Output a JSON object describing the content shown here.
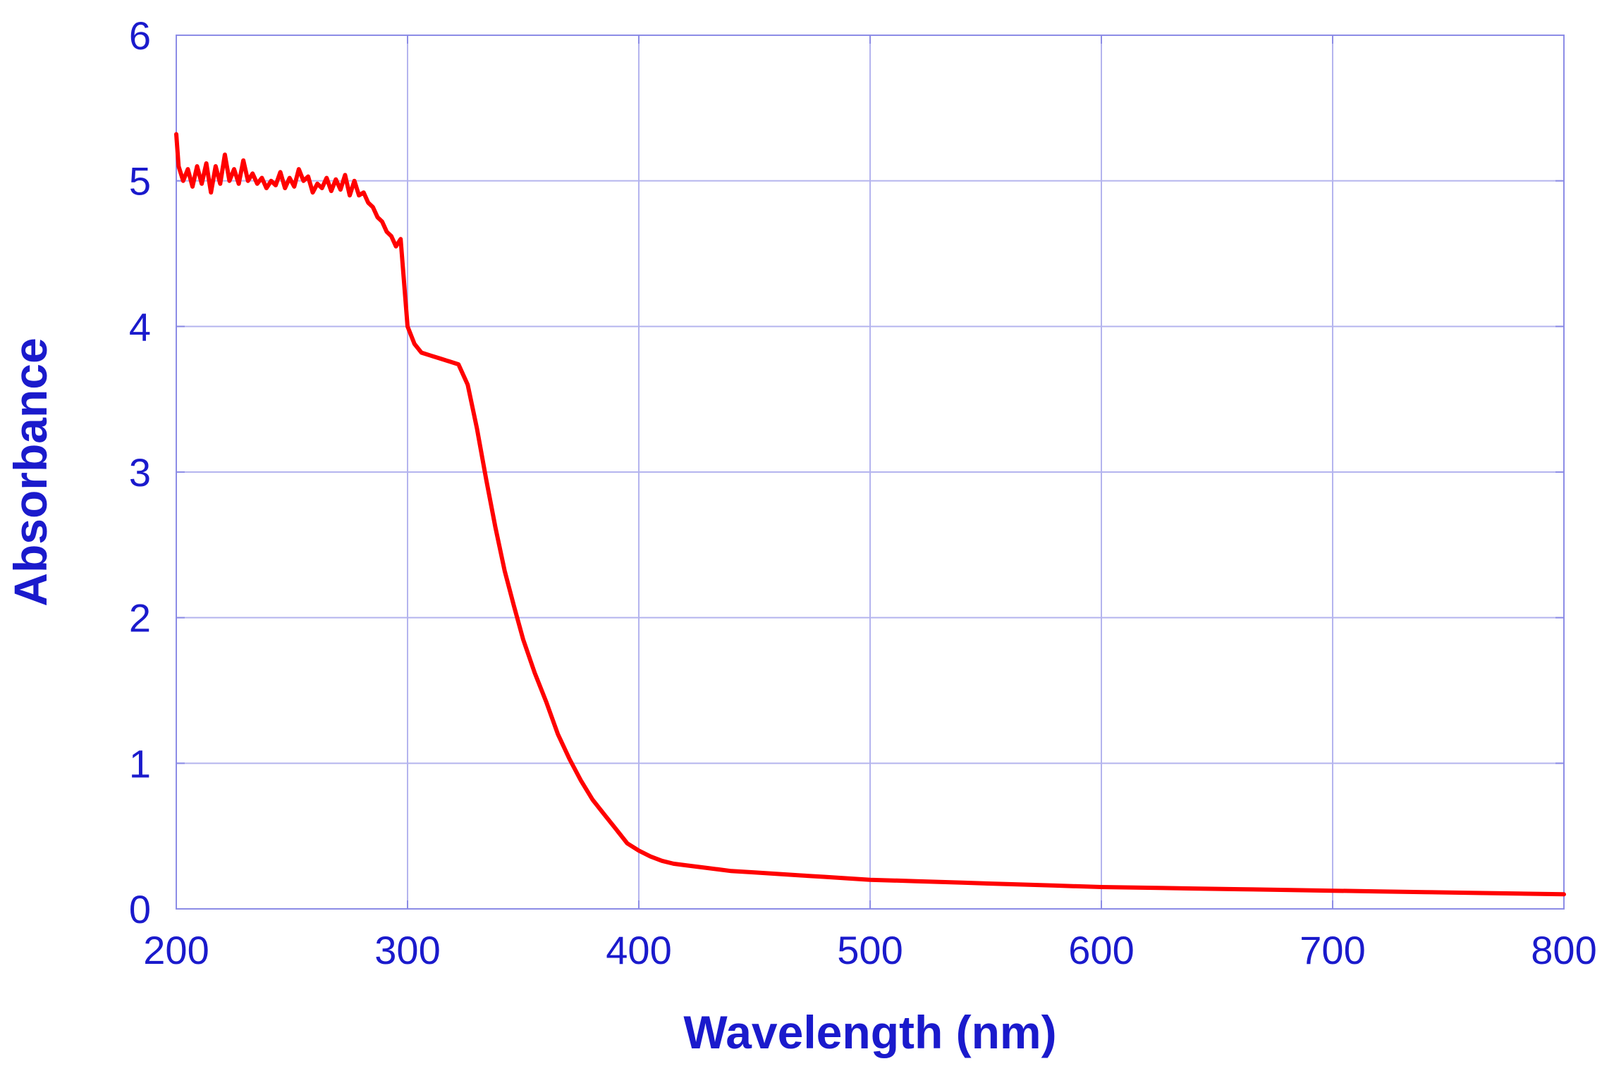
{
  "chart_data": {
    "type": "line",
    "title": "",
    "xlabel": "Wavelength (nm)",
    "ylabel": "Absorbance",
    "xlim": [
      200,
      800
    ],
    "ylim": [
      0,
      6
    ],
    "x_ticks": [
      "200",
      "300",
      "400",
      "500",
      "600",
      "700",
      "800"
    ],
    "y_ticks": [
      "0",
      "1",
      "2",
      "3",
      "4",
      "5",
      "6"
    ],
    "grid": true,
    "legend": "none",
    "colors": {
      "line": "#ff0000",
      "grid": "#b4b4ee",
      "frame": "#8c8ce6",
      "text": "#1a1acc"
    },
    "series": [
      {
        "x": [
          200,
          201,
          203,
          205,
          207,
          209,
          211,
          213,
          215,
          217,
          219,
          221,
          223,
          225,
          227,
          229,
          231,
          233,
          235,
          237,
          239,
          241,
          243,
          245,
          247,
          249,
          251,
          253,
          255,
          257,
          259,
          261,
          263,
          265,
          267,
          269,
          271,
          273,
          275,
          277,
          279,
          281,
          283,
          285,
          287,
          289,
          291,
          293,
          295,
          297,
          300,
          303,
          306,
          310,
          314,
          318,
          322,
          326,
          330,
          334,
          338,
          342,
          346,
          350,
          355,
          360,
          365,
          370,
          375,
          380,
          385,
          390,
          395,
          400,
          405,
          410,
          415,
          420,
          430,
          440,
          450,
          460,
          470,
          480,
          500,
          520,
          540,
          560,
          580,
          600,
          620,
          640,
          660,
          680,
          700,
          720,
          740,
          760,
          780,
          800
        ],
        "values": [
          5.32,
          5.1,
          5.0,
          5.08,
          4.96,
          5.1,
          4.98,
          5.12,
          4.92,
          5.1,
          4.98,
          5.18,
          5.0,
          5.08,
          4.98,
          5.14,
          5.0,
          5.05,
          4.98,
          5.02,
          4.95,
          5.0,
          4.97,
          5.06,
          4.95,
          5.02,
          4.96,
          5.08,
          5.0,
          5.03,
          4.92,
          4.98,
          4.95,
          5.02,
          4.93,
          5.01,
          4.94,
          5.04,
          4.9,
          5.0,
          4.9,
          4.92,
          4.85,
          4.82,
          4.75,
          4.72,
          4.65,
          4.62,
          4.55,
          4.6,
          4.0,
          3.88,
          3.82,
          3.8,
          3.78,
          3.76,
          3.74,
          3.6,
          3.3,
          2.95,
          2.62,
          2.32,
          2.08,
          1.85,
          1.62,
          1.42,
          1.2,
          1.03,
          0.88,
          0.75,
          0.65,
          0.55,
          0.45,
          0.4,
          0.36,
          0.33,
          0.31,
          0.3,
          0.28,
          0.26,
          0.25,
          0.24,
          0.23,
          0.22,
          0.2,
          0.19,
          0.18,
          0.17,
          0.16,
          0.15,
          0.145,
          0.14,
          0.135,
          0.13,
          0.125,
          0.12,
          0.115,
          0.11,
          0.105,
          0.1
        ]
      }
    ]
  }
}
